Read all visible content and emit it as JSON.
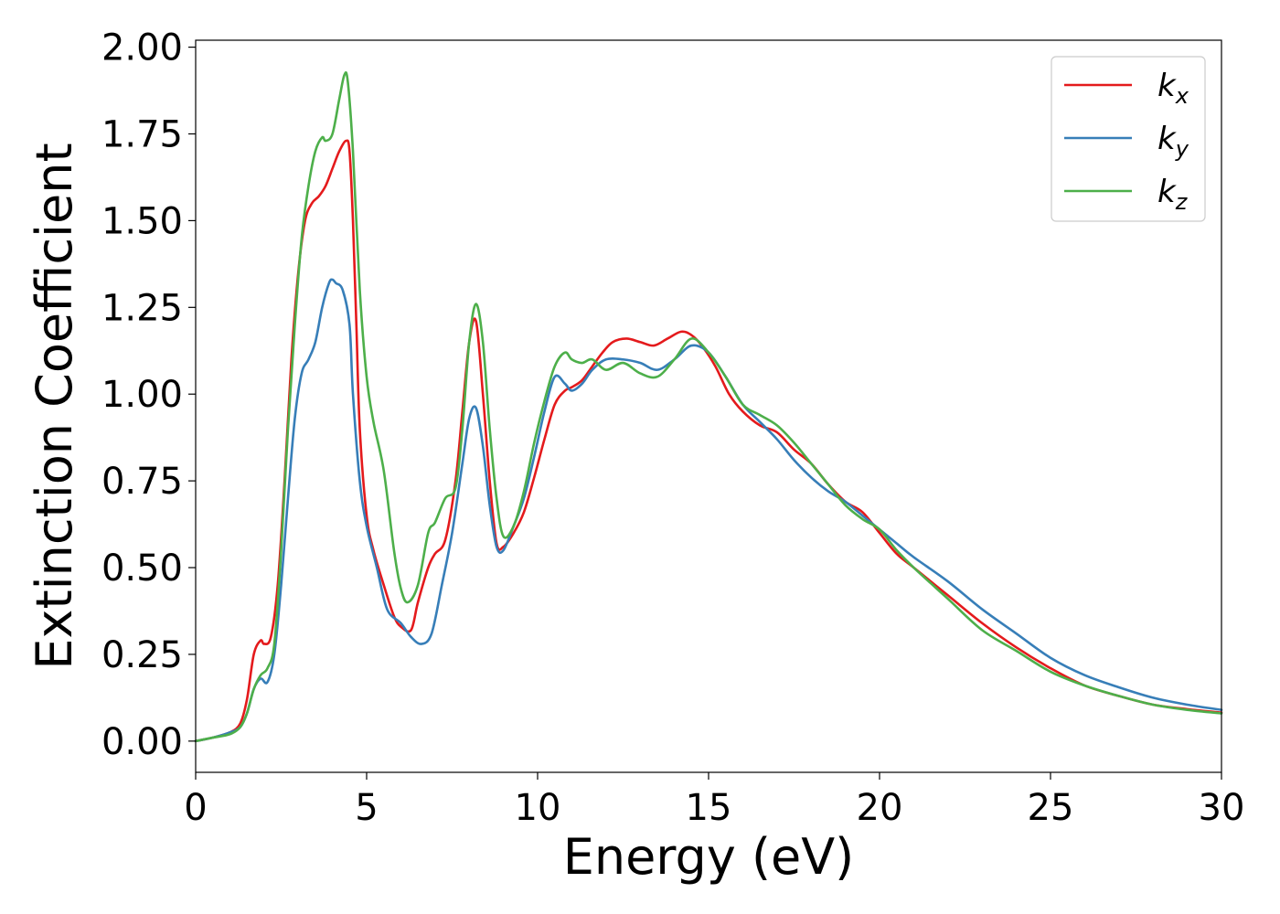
{
  "chart_data": {
    "type": "line",
    "title": "",
    "xlabel": "Energy (eV)",
    "ylabel": "Extinction Coefficient",
    "xlim": [
      0,
      30
    ],
    "ylim": [
      -0.09,
      2.02
    ],
    "xticks": [
      0,
      5,
      10,
      15,
      20,
      25,
      30
    ],
    "yticks": [
      0.0,
      0.25,
      0.5,
      0.75,
      1.0,
      1.25,
      1.5,
      1.75,
      2.0
    ],
    "xtick_labels": [
      "0",
      "5",
      "10",
      "15",
      "20",
      "25",
      "30"
    ],
    "ytick_labels": [
      "0.00",
      "0.25",
      "0.50",
      "0.75",
      "1.00",
      "1.25",
      "1.50",
      "1.75",
      "2.00"
    ],
    "grid": false,
    "legend_position": "top-right",
    "series": [
      {
        "name": "k_x",
        "base": "k",
        "sub": "x",
        "color": "#e41a1c",
        "x": [
          0,
          0.5,
          1.0,
          1.3,
          1.5,
          1.7,
          1.9,
          2.0,
          2.2,
          2.4,
          2.6,
          2.8,
          3.0,
          3.2,
          3.4,
          3.6,
          3.8,
          4.0,
          4.2,
          4.4,
          4.5,
          4.6,
          4.7,
          4.8,
          5.0,
          5.2,
          5.5,
          5.8,
          6.0,
          6.3,
          6.5,
          6.8,
          7.0,
          7.3,
          7.6,
          7.8,
          8.0,
          8.2,
          8.4,
          8.6,
          8.8,
          9.0,
          9.3,
          9.6,
          9.9,
          10.2,
          10.5,
          10.8,
          11.0,
          11.3,
          11.6,
          11.9,
          12.2,
          12.6,
          13.0,
          13.4,
          13.8,
          14.2,
          14.5,
          14.8,
          15.2,
          15.6,
          16.0,
          16.5,
          17.0,
          17.5,
          18.0,
          18.5,
          19.0,
          19.5,
          20.0,
          20.5,
          21.0,
          22.0,
          23.0,
          24.0,
          25.0,
          26.0,
          27.0,
          28.0,
          29.0,
          30.0
        ],
        "y": [
          0.0,
          0.01,
          0.025,
          0.05,
          0.12,
          0.25,
          0.29,
          0.28,
          0.3,
          0.45,
          0.75,
          1.1,
          1.35,
          1.5,
          1.55,
          1.57,
          1.6,
          1.65,
          1.7,
          1.73,
          1.7,
          1.5,
          1.2,
          0.9,
          0.65,
          0.55,
          0.45,
          0.36,
          0.33,
          0.32,
          0.4,
          0.5,
          0.54,
          0.58,
          0.75,
          0.95,
          1.15,
          1.21,
          1.0,
          0.75,
          0.57,
          0.56,
          0.6,
          0.66,
          0.76,
          0.87,
          0.97,
          1.01,
          1.02,
          1.04,
          1.08,
          1.12,
          1.15,
          1.16,
          1.15,
          1.14,
          1.16,
          1.18,
          1.17,
          1.14,
          1.08,
          1.0,
          0.95,
          0.91,
          0.89,
          0.84,
          0.8,
          0.74,
          0.69,
          0.66,
          0.6,
          0.54,
          0.5,
          0.42,
          0.34,
          0.27,
          0.21,
          0.16,
          0.13,
          0.105,
          0.092,
          0.082
        ]
      },
      {
        "name": "k_y",
        "base": "k",
        "sub": "y",
        "color": "#377eb8",
        "x": [
          0,
          0.5,
          1.0,
          1.3,
          1.5,
          1.7,
          1.9,
          2.1,
          2.3,
          2.5,
          2.7,
          2.9,
          3.1,
          3.3,
          3.5,
          3.7,
          3.9,
          4.0,
          4.1,
          4.3,
          4.5,
          4.6,
          4.8,
          5.0,
          5.3,
          5.6,
          6.0,
          6.3,
          6.6,
          6.9,
          7.2,
          7.5,
          7.8,
          8.0,
          8.2,
          8.4,
          8.6,
          8.8,
          9.0,
          9.3,
          9.6,
          9.9,
          10.2,
          10.5,
          10.8,
          11.0,
          11.3,
          11.6,
          12.0,
          12.5,
          13.0,
          13.5,
          14.0,
          14.5,
          15.0,
          15.5,
          16.0,
          16.5,
          17.0,
          17.5,
          18.0,
          18.5,
          19.0,
          19.5,
          20.0,
          20.5,
          21.0,
          22.0,
          23.0,
          24.0,
          25.0,
          26.0,
          27.0,
          28.0,
          29.0,
          30.0
        ],
        "y": [
          0.0,
          0.01,
          0.025,
          0.04,
          0.08,
          0.15,
          0.18,
          0.17,
          0.25,
          0.45,
          0.7,
          0.93,
          1.06,
          1.1,
          1.15,
          1.25,
          1.32,
          1.33,
          1.32,
          1.3,
          1.2,
          1.0,
          0.75,
          0.62,
          0.5,
          0.38,
          0.34,
          0.3,
          0.28,
          0.31,
          0.45,
          0.6,
          0.8,
          0.93,
          0.96,
          0.85,
          0.68,
          0.56,
          0.55,
          0.62,
          0.7,
          0.82,
          0.95,
          1.05,
          1.03,
          1.01,
          1.03,
          1.07,
          1.1,
          1.1,
          1.09,
          1.07,
          1.1,
          1.14,
          1.12,
          1.05,
          0.97,
          0.92,
          0.87,
          0.81,
          0.76,
          0.72,
          0.69,
          0.65,
          0.61,
          0.57,
          0.53,
          0.46,
          0.38,
          0.31,
          0.24,
          0.19,
          0.155,
          0.125,
          0.105,
          0.09
        ]
      },
      {
        "name": "k_z",
        "base": "k",
        "sub": "z",
        "color": "#4daf4a",
        "x": [
          0,
          0.5,
          1.0,
          1.3,
          1.5,
          1.7,
          1.9,
          2.1,
          2.3,
          2.5,
          2.7,
          2.9,
          3.1,
          3.3,
          3.5,
          3.7,
          3.8,
          4.0,
          4.2,
          4.35,
          4.45,
          4.6,
          4.8,
          5.0,
          5.2,
          5.5,
          5.8,
          6.0,
          6.2,
          6.5,
          6.8,
          7.0,
          7.3,
          7.6,
          7.8,
          8.0,
          8.2,
          8.4,
          8.6,
          8.8,
          9.0,
          9.3,
          9.6,
          9.9,
          10.2,
          10.5,
          10.8,
          11.0,
          11.3,
          11.6,
          12.0,
          12.5,
          13.0,
          13.5,
          14.0,
          14.5,
          15.0,
          15.5,
          16.0,
          16.5,
          17.0,
          17.5,
          18.0,
          18.5,
          19.0,
          19.5,
          20.0,
          20.5,
          21.0,
          22.0,
          23.0,
          24.0,
          25.0,
          26.0,
          27.0,
          28.0,
          29.0,
          30.0
        ],
        "y": [
          0.0,
          0.01,
          0.02,
          0.04,
          0.08,
          0.15,
          0.19,
          0.21,
          0.28,
          0.55,
          0.9,
          1.2,
          1.45,
          1.6,
          1.7,
          1.74,
          1.73,
          1.75,
          1.85,
          1.92,
          1.9,
          1.7,
          1.3,
          1.05,
          0.92,
          0.78,
          0.55,
          0.44,
          0.4,
          0.45,
          0.6,
          0.63,
          0.7,
          0.73,
          0.9,
          1.15,
          1.26,
          1.15,
          0.9,
          0.7,
          0.59,
          0.62,
          0.72,
          0.86,
          0.98,
          1.08,
          1.12,
          1.1,
          1.09,
          1.1,
          1.07,
          1.09,
          1.06,
          1.05,
          1.1,
          1.16,
          1.12,
          1.05,
          0.97,
          0.94,
          0.91,
          0.86,
          0.8,
          0.74,
          0.68,
          0.64,
          0.61,
          0.55,
          0.5,
          0.41,
          0.32,
          0.26,
          0.2,
          0.16,
          0.13,
          0.105,
          0.09,
          0.08
        ]
      }
    ]
  }
}
